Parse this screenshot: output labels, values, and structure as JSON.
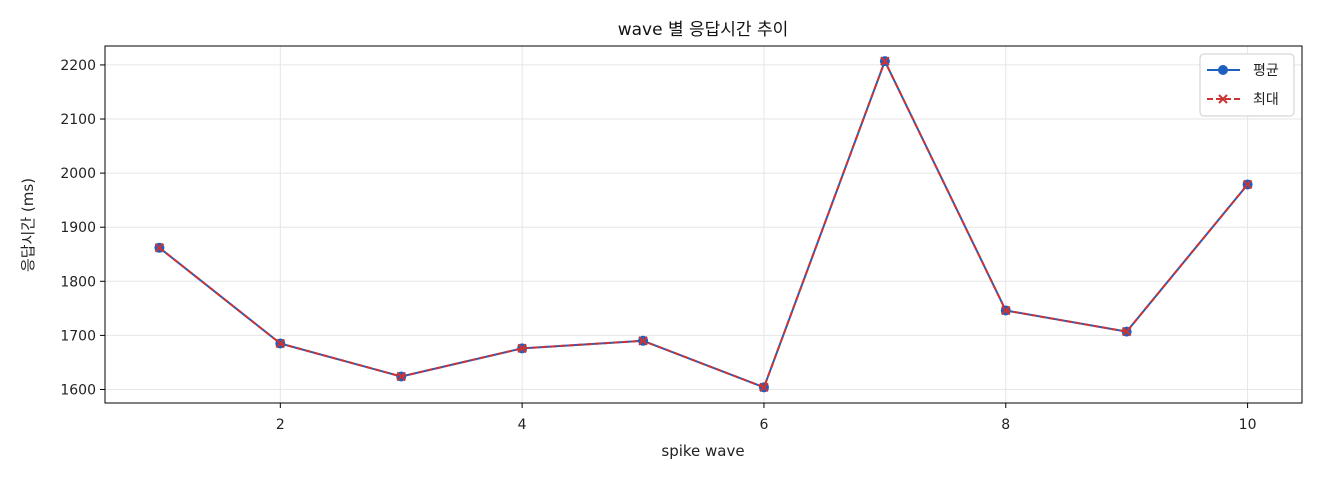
{
  "chart_data": {
    "type": "line",
    "title": "wave 별 응답시간 추이",
    "xlabel": "spike wave",
    "ylabel": "응답시간 (ms)",
    "x": [
      1,
      2,
      3,
      4,
      5,
      6,
      7,
      8,
      9,
      10
    ],
    "xlim": [
      0.55,
      10.45
    ],
    "ylim": [
      1575,
      2235
    ],
    "xticks": [
      2,
      4,
      6,
      8,
      10
    ],
    "yticks": [
      1600,
      1700,
      1800,
      1900,
      2000,
      2100,
      2200
    ],
    "grid": true,
    "legend_position": "top-right",
    "series": [
      {
        "name": "평균",
        "color": "#1f5fbf",
        "linestyle": "solid",
        "marker": "circle",
        "values": [
          1862,
          1685,
          1624,
          1676,
          1690,
          1604,
          2207,
          1746,
          1707,
          1979
        ]
      },
      {
        "name": "최대",
        "color": "#cc3333",
        "linestyle": "dashed",
        "marker": "x",
        "values": [
          1862,
          1685,
          1624,
          1676,
          1690,
          1604,
          2207,
          1746,
          1707,
          1979
        ]
      }
    ]
  }
}
